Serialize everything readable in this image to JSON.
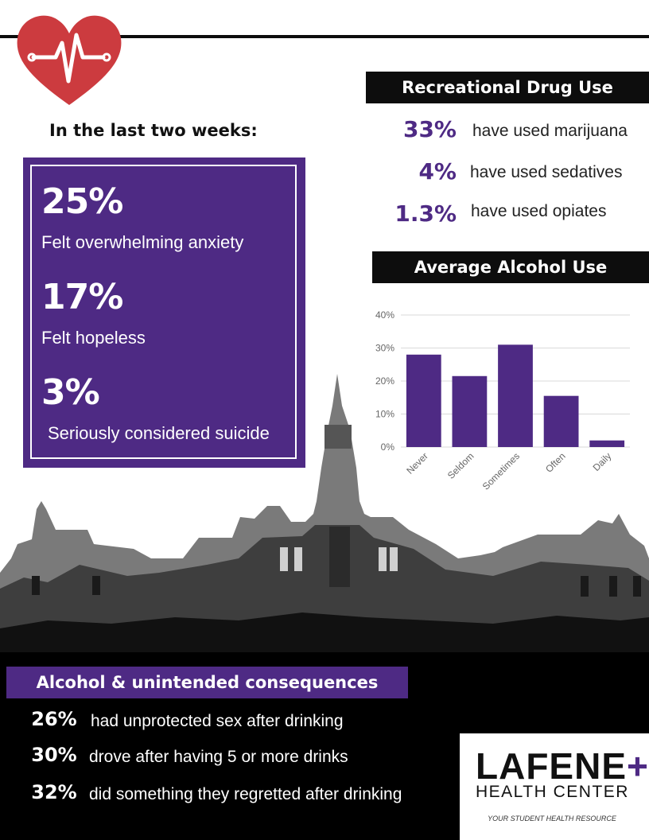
{
  "header": {
    "period_label": "In the last two weeks:"
  },
  "mental_health": [
    {
      "pct": "25%",
      "label": "Felt overwhelming anxiety"
    },
    {
      "pct": "17%",
      "label": "Felt hopeless"
    },
    {
      "pct": "3%",
      "label": "Seriously considered suicide"
    }
  ],
  "drug_use": {
    "title": "Recreational Drug Use",
    "items": [
      {
        "pct": "33%",
        "label": "have used marijuana"
      },
      {
        "pct": "4%",
        "label": "have used sedatives"
      },
      {
        "pct": "1.3%",
        "label": "have used opiates"
      }
    ]
  },
  "alcohol_chart_title": "Average Alcohol Use",
  "chart_data": {
    "type": "bar",
    "title": "Average Alcohol Use",
    "categories": [
      "Never",
      "Seldom",
      "Sometimes",
      "Often",
      "Daily"
    ],
    "values": [
      28,
      21.5,
      31,
      15.5,
      2
    ],
    "ylim": [
      0,
      40
    ],
    "yticks": [
      "0%",
      "10%",
      "20%",
      "30%",
      "40%"
    ],
    "grid": true,
    "bar_color": "#4e2a84"
  },
  "consequences": {
    "title": "Alcohol & unintended consequences",
    "items": [
      {
        "pct": "26%",
        "label": "had unprotected sex after drinking"
      },
      {
        "pct": "30%",
        "label": "drove after having 5 or more drinks"
      },
      {
        "pct": "32%",
        "label": "did something they regretted after drinking"
      }
    ]
  },
  "logo": {
    "name": "LAFENE",
    "plus": "+",
    "subtitle": "HEALTH CENTER",
    "tagline": "YOUR STUDENT HEALTH RESOURCE"
  },
  "colors": {
    "purple": "#4e2a84",
    "heart_red": "#cc3b3f",
    "black": "#000000"
  }
}
